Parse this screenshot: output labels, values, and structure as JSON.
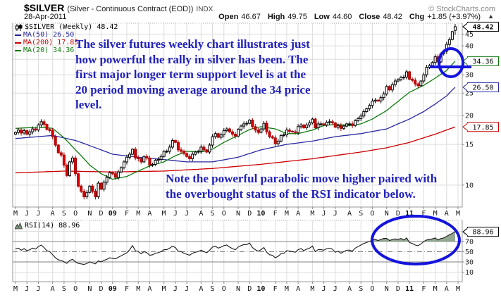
{
  "header": {
    "symbol": "$SILVER",
    "description": "(Silver - Continuous Contract (EOD))",
    "exchange": "INDX",
    "copyright": "© StockCharts.com",
    "date": "28-Apr-2011",
    "quote": {
      "open_label": "Open",
      "open": "46.67",
      "high_label": "High",
      "high": "49.75",
      "low_label": "Low",
      "low": "44.60",
      "close_label": "Close",
      "close": "48.42",
      "chg_label": "Chg",
      "chg": "+1.85 (+3.97%)",
      "direction": "▲"
    }
  },
  "legend": {
    "main": "$SILVER (Weekly) 48.42",
    "ma50": {
      "label": "MA(50) 26.50",
      "color": "#2929a3"
    },
    "ma200": {
      "label": "MA(200) 17.85",
      "color": "#cc0000"
    },
    "ma20": {
      "label": "MA(20) 34.36",
      "color": "#0e7a0e"
    }
  },
  "annotations": {
    "color": "#2222bb",
    "shape_color": "#1414dd",
    "note1_lines": [
      "The silver futures weekly chart illustrates just",
      "how powerful the rally in silver has been. The",
      "first major longer term support level is at the",
      "20 period moving average around the 34 price",
      "level."
    ],
    "note2_lines": [
      "Note the powerful parabolic move higher paired with",
      "the overbought status of the RSI indicator below."
    ]
  },
  "price_axis": {
    "plain_labels": [
      45,
      40,
      30,
      25,
      20,
      15,
      10
    ],
    "boxed": [
      {
        "value": "48.42",
        "price": 48.42,
        "color": "#000000",
        "bold": true
      },
      {
        "value": "34.36",
        "price": 34.36,
        "color": "#0e7a0e",
        "bold": false
      },
      {
        "value": "26.50",
        "price": 26.5,
        "color": "#2929a3",
        "bold": false
      },
      {
        "value": "17.85",
        "price": 17.85,
        "color": "#cc0000",
        "bold": false
      }
    ]
  },
  "rsi_panel": {
    "label": "RSI(14) 88.96",
    "boxed_value": "88.96",
    "boxed_level": 88.96,
    "axis_labels": [
      70,
      50,
      30,
      10
    ],
    "light_gridlines": [
      90,
      10
    ],
    "solid_lines": [
      70,
      30
    ],
    "dashdot_line": 50,
    "fill_color": "#92a892",
    "line_color": "#1a1a1a"
  },
  "x_axis": {
    "labels": [
      "M",
      "J",
      "J",
      "A",
      "S",
      "O",
      "N",
      "D",
      "09",
      "F",
      "M",
      "A",
      "M",
      "J",
      "J",
      "A",
      "S",
      "O",
      "N",
      "D",
      "10",
      "F",
      "M",
      "A",
      "M",
      "J",
      "J",
      "A",
      "S",
      "O",
      "N",
      "D",
      "11",
      "F",
      "M",
      "A",
      "M"
    ],
    "bold_labels": [
      "09",
      "10",
      "11"
    ]
  },
  "chart_data": {
    "type": "candlestick",
    "title": "$SILVER weekly with MA(20), MA(50), MA(200) overlays and RSI(14) sub-panel",
    "timeframe": "weekly",
    "x_range": [
      "May-2008",
      "Apr-2011"
    ],
    "y_scale": "log",
    "price_ylim": [
      8.0,
      50
    ],
    "gridline_prices": [
      45,
      40,
      35,
      30,
      25,
      20,
      15,
      10
    ],
    "last_bar_ohlc": {
      "open": 46.67,
      "high": 49.75,
      "low": 44.6,
      "close": 48.42
    },
    "first_open": 16.6,
    "up_candle": {
      "fill": "#ffffff",
      "stroke": "#000000"
    },
    "down_candle": {
      "fill": "#dd0000",
      "stroke": "#aa0000"
    },
    "weeks_per_month": [
      4,
      4,
      5,
      4,
      4,
      5,
      4,
      4,
      5,
      4,
      4,
      5,
      4,
      4,
      5,
      4,
      4,
      5,
      4,
      4,
      5,
      4,
      4,
      5,
      4,
      4,
      5,
      4,
      4,
      5,
      4,
      4,
      5,
      4,
      4,
      4
    ],
    "weekly_closes": [
      16.9,
      17.3,
      16.8,
      17.2,
      16.6,
      17.0,
      17.5,
      17.3,
      18.2,
      18.8,
      18.3,
      17.4,
      17.2,
      16.2,
      14.9,
      13.8,
      13.5,
      12.2,
      11.0,
      12.6,
      13.1,
      11.2,
      9.9,
      9.4,
      8.9,
      9.3,
      9.9,
      9.4,
      8.9,
      10.2,
      9.6,
      10.3,
      10.8,
      11.3,
      11.2,
      10.8,
      11.4,
      11.9,
      12.6,
      13.2,
      13.6,
      14.3,
      13.1,
      13.0,
      12.6,
      13.3,
      13.1,
      12.2,
      12.3,
      12.8,
      12.9,
      13.3,
      14.0,
      14.0,
      14.6,
      15.6,
      15.3,
      14.2,
      14.0,
      13.7,
      13.3,
      13.0,
      13.6,
      13.9,
      14.0,
      14.6,
      14.2,
      13.9,
      14.9,
      16.2,
      16.7,
      16.1,
      16.5,
      17.2,
      17.5,
      17.0,
      16.6,
      16.3,
      17.4,
      18.0,
      18.4,
      18.5,
      19.1,
      17.9,
      17.3,
      16.9,
      17.5,
      18.5,
      17.0,
      16.2,
      16.0,
      15.1,
      15.5,
      16.4,
      16.5,
      17.3,
      17.1,
      17.0,
      16.9,
      17.9,
      18.2,
      17.7,
      18.2,
      18.6,
      19.3,
      17.7,
      18.4,
      18.4,
      18.2,
      18.7,
      18.8,
      18.6,
      17.8,
      18.1,
      17.6,
      18.0,
      18.4,
      18.4,
      18.1,
      19.0,
      19.4,
      19.9,
      20.8,
      21.4,
      22.1,
      23.1,
      23.3,
      23.1,
      23.9,
      24.8,
      26.7,
      25.8,
      27.2,
      28.2,
      28.6,
      29.2,
      29.3,
      30.9,
      28.7,
      28.4,
      27.4,
      26.9,
      28.2,
      30.0,
      32.3,
      32.9,
      33.9,
      35.9,
      34.1,
      37.0,
      37.9,
      40.6,
      42.6,
      46.1,
      48.42
    ],
    "ma20_anchors": [
      [
        0,
        17.6
      ],
      [
        8,
        17.8
      ],
      [
        13,
        17.6
      ],
      [
        17,
        16.0
      ],
      [
        21,
        14.2
      ],
      [
        26,
        12.2
      ],
      [
        30,
        11.2
      ],
      [
        34,
        10.6
      ],
      [
        39,
        10.9
      ],
      [
        43,
        11.5
      ],
      [
        47,
        12.1
      ],
      [
        52,
        12.6
      ],
      [
        56,
        13.4
      ],
      [
        60,
        14.0
      ],
      [
        65,
        13.9
      ],
      [
        69,
        14.3
      ],
      [
        73,
        15.3
      ],
      [
        78,
        16.4
      ],
      [
        82,
        17.4
      ],
      [
        86,
        17.9
      ],
      [
        91,
        17.5
      ],
      [
        95,
        16.7
      ],
      [
        99,
        16.7
      ],
      [
        104,
        17.3
      ],
      [
        108,
        18.1
      ],
      [
        112,
        18.3
      ],
      [
        117,
        18.1
      ],
      [
        121,
        18.4
      ],
      [
        125,
        19.3
      ],
      [
        130,
        21.0
      ],
      [
        134,
        23.0
      ],
      [
        138,
        25.2
      ],
      [
        143,
        27.0
      ],
      [
        147,
        29.0
      ],
      [
        151,
        31.3
      ],
      [
        154,
        34.36
      ]
    ],
    "ma50_anchors": [
      [
        0,
        15.9
      ],
      [
        13,
        16.4
      ],
      [
        21,
        15.6
      ],
      [
        30,
        14.2
      ],
      [
        34,
        13.6
      ],
      [
        43,
        13.2
      ],
      [
        52,
        12.9
      ],
      [
        60,
        12.6
      ],
      [
        69,
        12.6
      ],
      [
        78,
        13.2
      ],
      [
        86,
        14.2
      ],
      [
        95,
        15.0
      ],
      [
        104,
        15.5
      ],
      [
        112,
        16.2
      ],
      [
        121,
        16.7
      ],
      [
        130,
        17.5
      ],
      [
        138,
        19.3
      ],
      [
        143,
        20.8
      ],
      [
        147,
        22.4
      ],
      [
        151,
        24.3
      ],
      [
        154,
        26.5
      ]
    ],
    "ma200_anchors": [
      [
        0,
        11.3
      ],
      [
        17,
        11.5
      ],
      [
        34,
        11.4
      ],
      [
        52,
        11.5
      ],
      [
        69,
        11.8
      ],
      [
        86,
        12.3
      ],
      [
        104,
        13.0
      ],
      [
        121,
        13.9
      ],
      [
        130,
        14.5
      ],
      [
        138,
        15.3
      ],
      [
        147,
        16.6
      ],
      [
        154,
        17.85
      ]
    ],
    "rsi_values": [
      55,
      57,
      53,
      56,
      52,
      54,
      57,
      55,
      60,
      63,
      58,
      52,
      50,
      44,
      38,
      34,
      33,
      30,
      27,
      33,
      35,
      30,
      27,
      26,
      25,
      27,
      30,
      28,
      26,
      32,
      30,
      33,
      35,
      38,
      37,
      36,
      39,
      42,
      45,
      48,
      54,
      62,
      52,
      50,
      46,
      50,
      48,
      43,
      44,
      47,
      48,
      50,
      54,
      54,
      57,
      61,
      58,
      51,
      50,
      47,
      45,
      43,
      47,
      49,
      50,
      53,
      50,
      48,
      53,
      59,
      61,
      57,
      59,
      62,
      63,
      59,
      56,
      54,
      59,
      62,
      64,
      64,
      67,
      58,
      54,
      51,
      54,
      58,
      49,
      44,
      43,
      38,
      41,
      46,
      47,
      52,
      51,
      50,
      49,
      54,
      56,
      52,
      55,
      57,
      61,
      50,
      54,
      54,
      53,
      56,
      57,
      55,
      49,
      51,
      47,
      50,
      53,
      53,
      51,
      57,
      60,
      63,
      66,
      68,
      70,
      73,
      74,
      72,
      74,
      76,
      76,
      72,
      74,
      75,
      74,
      76,
      73,
      77,
      68,
      66,
      63,
      62,
      65,
      70,
      73,
      74,
      75,
      77,
      73,
      76,
      77,
      80,
      83,
      86,
      88.96
    ]
  }
}
